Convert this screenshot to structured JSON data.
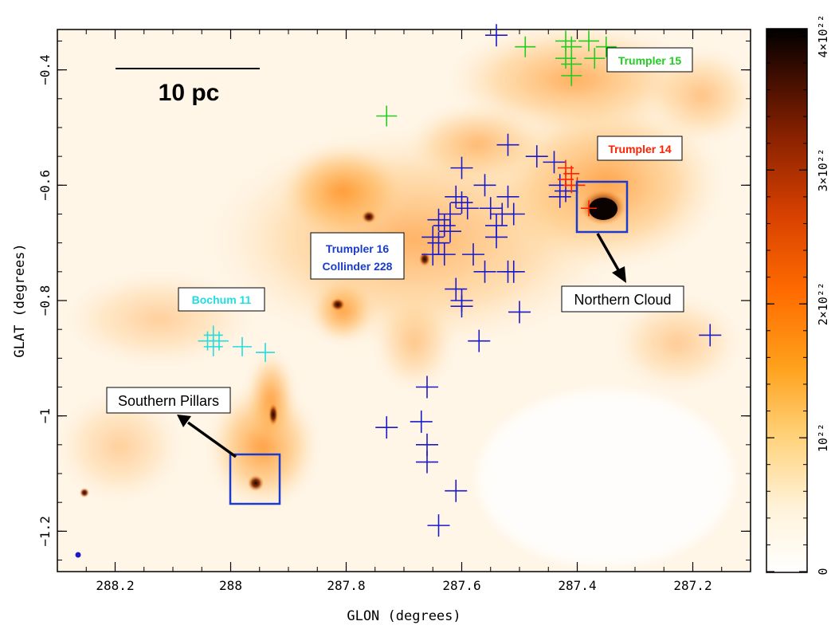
{
  "axes": {
    "xlabel": "GLON (degrees)",
    "ylabel": "GLAT (degrees)",
    "x_ticks": [
      "288.2",
      "288",
      "287.8",
      "287.6",
      "287.4",
      "287.2"
    ],
    "y_ticks": [
      "−0.4",
      "−0.6",
      "−0.8",
      "−1",
      "−1.2"
    ],
    "xlim": [
      288.3,
      287.1
    ],
    "ylim": [
      -1.27,
      -0.33
    ]
  },
  "scale_bar": {
    "label": "10 pc"
  },
  "colorbar": {
    "ticks": [
      {
        "value": 0,
        "text": "0"
      },
      {
        "value": 1,
        "text": "10²²"
      },
      {
        "value": 2,
        "text": "2×10²²"
      },
      {
        "value": 3,
        "text": "3×10²²"
      },
      {
        "value": 4,
        "text": "4×10²²"
      }
    ],
    "colors": [
      "#ffffff",
      "#fff2d9",
      "#ffd27a",
      "#ffa01a",
      "#ff6a00",
      "#d64000",
      "#8a2200",
      "#3a0c00",
      "#000000"
    ]
  },
  "labels": {
    "trumpler15": {
      "text": "Trumpler 15",
      "color": "#22cc22"
    },
    "trumpler14": {
      "text": "Trumpler 14",
      "color": "#ff2200"
    },
    "trumpler16_line1": {
      "text": "Trumpler 16",
      "color": "#1a3ccc"
    },
    "trumpler16_line2": {
      "text": "Collinder 228",
      "color": "#1a3ccc"
    },
    "bochum11": {
      "text": "Bochum 11",
      "color": "#22dddd"
    },
    "northern_cloud": {
      "text": "Northern Cloud"
    },
    "southern_pillars": {
      "text": "Southern Pillars"
    }
  },
  "marker_colors": {
    "blue": "#1a1acc",
    "green": "#22cc22",
    "red": "#ff2200",
    "cyan": "#22dddd",
    "box": "#1a3ccc"
  },
  "markers": {
    "blue": [
      [
        287.54,
        -0.34
      ],
      [
        287.52,
        -0.53
      ],
      [
        287.47,
        -0.55
      ],
      [
        287.44,
        -0.56
      ],
      [
        287.6,
        -0.57
      ],
      [
        287.56,
        -0.6
      ],
      [
        287.43,
        -0.6
      ],
      [
        287.42,
        -0.61
      ],
      [
        287.43,
        -0.62
      ],
      [
        287.52,
        -0.62
      ],
      [
        287.61,
        -0.62
      ],
      [
        287.6,
        -0.63
      ],
      [
        287.59,
        -0.64
      ],
      [
        287.62,
        -0.65
      ],
      [
        287.64,
        -0.66
      ],
      [
        287.63,
        -0.67
      ],
      [
        287.62,
        -0.68
      ],
      [
        287.55,
        -0.64
      ],
      [
        287.53,
        -0.65
      ],
      [
        287.51,
        -0.65
      ],
      [
        287.54,
        -0.67
      ],
      [
        287.54,
        -0.69
      ],
      [
        287.65,
        -0.69
      ],
      [
        287.64,
        -0.7
      ],
      [
        287.65,
        -0.72
      ],
      [
        287.63,
        -0.72
      ],
      [
        287.58,
        -0.72
      ],
      [
        287.56,
        -0.75
      ],
      [
        287.52,
        -0.75
      ],
      [
        287.51,
        -0.75
      ],
      [
        287.61,
        -0.78
      ],
      [
        287.6,
        -0.8
      ],
      [
        287.6,
        -0.81
      ],
      [
        287.5,
        -0.82
      ],
      [
        287.57,
        -0.87
      ],
      [
        287.17,
        -0.86
      ],
      [
        287.66,
        -0.95
      ],
      [
        287.73,
        -1.02
      ],
      [
        287.67,
        -1.01
      ],
      [
        287.66,
        -1.05
      ],
      [
        287.66,
        -1.08
      ],
      [
        287.61,
        -1.13
      ],
      [
        287.64,
        -1.19
      ]
    ],
    "green": [
      [
        287.49,
        -0.36
      ],
      [
        287.42,
        -0.35
      ],
      [
        287.41,
        -0.36
      ],
      [
        287.42,
        -0.38
      ],
      [
        287.41,
        -0.39
      ],
      [
        287.38,
        -0.35
      ],
      [
        287.37,
        -0.38
      ],
      [
        287.35,
        -0.36
      ],
      [
        287.41,
        -0.41
      ],
      [
        287.73,
        -0.48
      ]
    ],
    "red": [
      [
        287.41,
        -0.58
      ],
      [
        287.42,
        -0.59
      ],
      [
        287.4,
        -0.6
      ],
      [
        287.41,
        -0.6
      ],
      [
        287.42,
        -0.57
      ],
      [
        287.38,
        -0.64
      ]
    ],
    "cyan": [
      [
        288.04,
        -0.87
      ],
      [
        288.03,
        -0.86
      ],
      [
        288.02,
        -0.87
      ],
      [
        288.03,
        -0.88
      ],
      [
        287.98,
        -0.88
      ],
      [
        287.94,
        -0.89
      ]
    ]
  }
}
